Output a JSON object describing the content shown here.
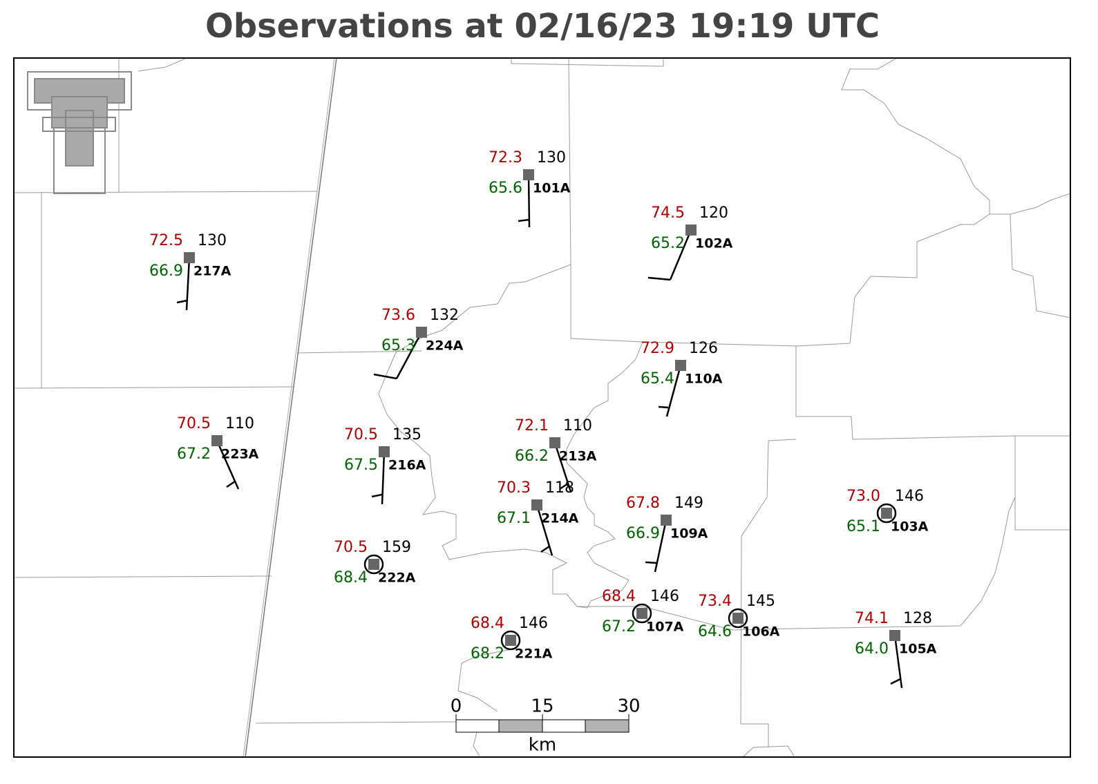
{
  "title": "Observations at 02/16/23 19:19 UTC",
  "stations": [
    {
      "id": "101A",
      "temperature": "72.3",
      "dewpoint": "65.6",
      "value": "130"
    },
    {
      "id": "102A",
      "temperature": "74.5",
      "dewpoint": "65.2",
      "value": "120"
    },
    {
      "id": "217A",
      "temperature": "72.5",
      "dewpoint": "66.9",
      "value": "130"
    },
    {
      "id": "224A",
      "temperature": "73.6",
      "dewpoint": "65.3",
      "value": "132"
    },
    {
      "id": "110A",
      "temperature": "72.9",
      "dewpoint": "65.4",
      "value": "126"
    },
    {
      "id": "223A",
      "temperature": "70.5",
      "dewpoint": "67.2",
      "value": "110"
    },
    {
      "id": "216A",
      "temperature": "70.5",
      "dewpoint": "67.5",
      "value": "135"
    },
    {
      "id": "213A",
      "temperature": "72.1",
      "dewpoint": "66.2",
      "value": "110"
    },
    {
      "id": "214A",
      "temperature": "70.3",
      "dewpoint": "67.1",
      "value": "118"
    },
    {
      "id": "109A",
      "temperature": "67.8",
      "dewpoint": "66.9",
      "value": "149"
    },
    {
      "id": "103A",
      "temperature": "73.0",
      "dewpoint": "65.1",
      "value": "146"
    },
    {
      "id": "222A",
      "temperature": "70.5",
      "dewpoint": "68.4",
      "value": "159"
    },
    {
      "id": "107A",
      "temperature": "68.4",
      "dewpoint": "67.2",
      "value": "146"
    },
    {
      "id": "106A",
      "temperature": "73.4",
      "dewpoint": "64.6",
      "value": "145"
    },
    {
      "id": "221A",
      "temperature": "68.4",
      "dewpoint": "68.2",
      "value": "146"
    },
    {
      "id": "105A",
      "temperature": "74.1",
      "dewpoint": "64.0",
      "value": "128"
    }
  ],
  "scale_bar": {
    "labels": [
      "0",
      "15",
      "30"
    ],
    "unit": "km"
  }
}
